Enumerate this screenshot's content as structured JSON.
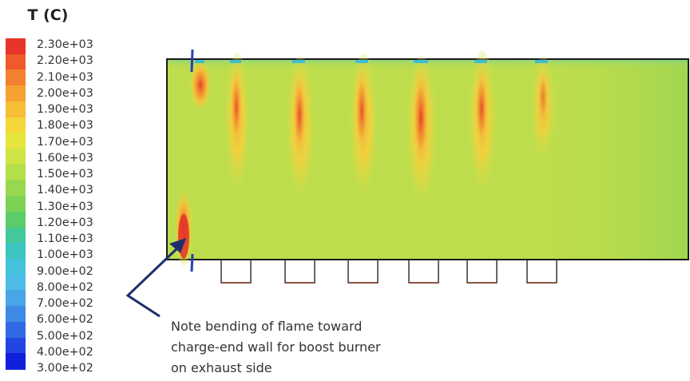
{
  "legend": {
    "title": "T (C)",
    "ticks": [
      "2.30e+03",
      "2.20e+03",
      "2.10e+03",
      "2.00e+03",
      "1.90e+03",
      "1.80e+03",
      "1.70e+03",
      "1.60e+03",
      "1.50e+03",
      "1.40e+03",
      "1.30e+03",
      "1.20e+03",
      "1.10e+03",
      "1.00e+03",
      "9.00e+02",
      "8.00e+02",
      "7.00e+02",
      "6.00e+02",
      "5.00e+02",
      "4.00e+02",
      "3.00e+02"
    ],
    "colors": [
      "#e8352a",
      "#ee5a2c",
      "#f2802e",
      "#f5a233",
      "#f6bd36",
      "#f2d63a",
      "#e6e43e",
      "#cde444",
      "#b4de4a",
      "#98d84e",
      "#7cd252",
      "#5ccc6a",
      "#44c89a",
      "#3cc4c0",
      "#44c2dc",
      "#4cbce6",
      "#48a6e8",
      "#3e8ae6",
      "#306ae4",
      "#2346e2",
      "#1020dc"
    ],
    "range_min": 300,
    "range_max": 2300
  },
  "annotation": {
    "lines": [
      "Note bending of flame toward",
      "charge-end wall for boost burner",
      "on exhaust side"
    ]
  },
  "colors": {
    "background_field": "#b7dc4e",
    "flame_core": "#e8402a",
    "flame_mid": "#f4a83a",
    "arrow": "#1f2e6b",
    "burner_outline": "#8a3c2c"
  }
}
